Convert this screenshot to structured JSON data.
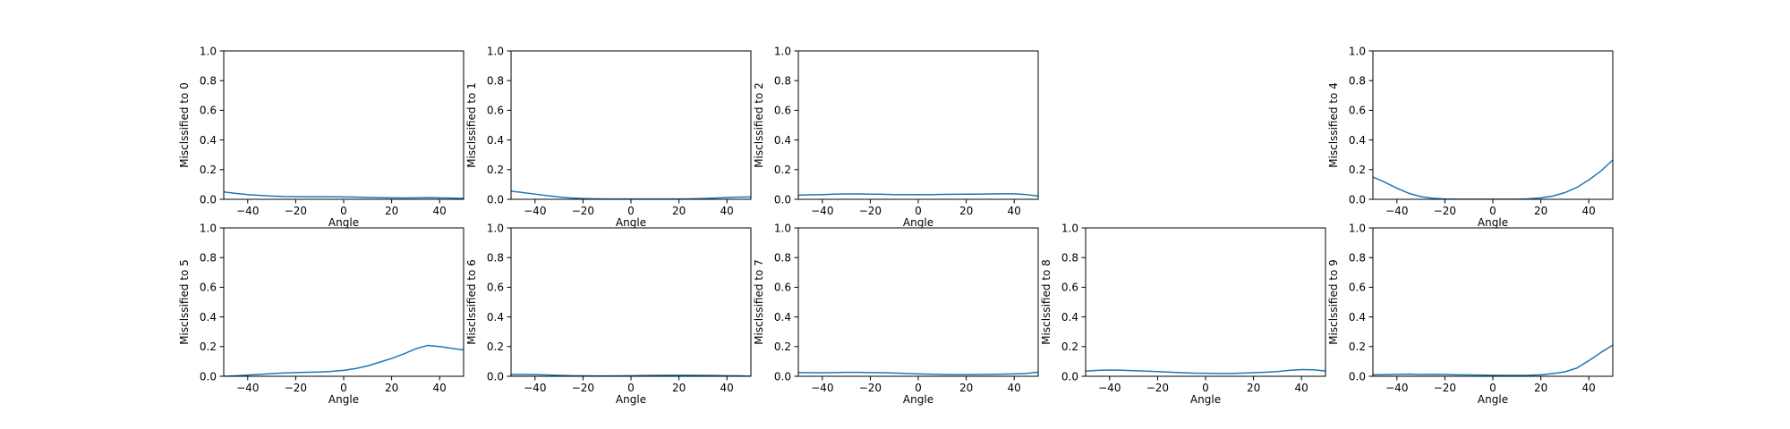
{
  "chart_data": [
    {
      "type": "line",
      "xlabel": "Angle",
      "ylabel": "Misclssified to 0",
      "xlim": [
        -50,
        50
      ],
      "ylim": [
        0,
        1
      ],
      "xticks": [
        -40,
        -20,
        0,
        20,
        40
      ],
      "yticks": [
        0.0,
        0.2,
        0.4,
        0.6,
        0.8,
        1.0
      ],
      "x": [
        -50,
        -45,
        -40,
        -35,
        -30,
        -25,
        -20,
        -15,
        -10,
        -5,
        0,
        5,
        10,
        15,
        20,
        25,
        30,
        35,
        40,
        45,
        50
      ],
      "y": [
        0.05,
        0.04,
        0.032,
        0.026,
        0.022,
        0.019,
        0.018,
        0.017,
        0.017,
        0.017,
        0.016,
        0.015,
        0.013,
        0.011,
        0.01,
        0.009,
        0.01,
        0.011,
        0.01,
        0.008,
        0.006
      ]
    },
    {
      "type": "line",
      "xlabel": "Angle",
      "ylabel": "Misclssified to 1",
      "xlim": [
        -50,
        50
      ],
      "ylim": [
        0,
        1
      ],
      "xticks": [
        -40,
        -20,
        0,
        20,
        40
      ],
      "yticks": [
        0.0,
        0.2,
        0.4,
        0.6,
        0.8,
        1.0
      ],
      "x": [
        -50,
        -45,
        -40,
        -35,
        -30,
        -25,
        -20,
        -15,
        -10,
        -5,
        0,
        5,
        10,
        15,
        20,
        25,
        30,
        35,
        40,
        45,
        50
      ],
      "y": [
        0.055,
        0.045,
        0.035,
        0.025,
        0.016,
        0.009,
        0.005,
        0.003,
        0.002,
        0.002,
        0.002,
        0.002,
        0.002,
        0.002,
        0.002,
        0.003,
        0.005,
        0.008,
        0.012,
        0.015,
        0.016
      ]
    },
    {
      "type": "line",
      "xlabel": "Angle",
      "ylabel": "Misclssified to 2",
      "xlim": [
        -50,
        50
      ],
      "ylim": [
        0,
        1
      ],
      "xticks": [
        -40,
        -20,
        0,
        20,
        40
      ],
      "yticks": [
        0.0,
        0.2,
        0.4,
        0.6,
        0.8,
        1.0
      ],
      "x": [
        -50,
        -45,
        -40,
        -35,
        -30,
        -25,
        -20,
        -15,
        -10,
        -5,
        0,
        5,
        10,
        15,
        20,
        25,
        30,
        35,
        40,
        45,
        50
      ],
      "y": [
        0.028,
        0.03,
        0.032,
        0.035,
        0.036,
        0.036,
        0.035,
        0.034,
        0.032,
        0.032,
        0.032,
        0.032,
        0.033,
        0.034,
        0.035,
        0.035,
        0.036,
        0.037,
        0.037,
        0.032,
        0.022
      ]
    },
    null,
    {
      "type": "line",
      "xlabel": "Angle",
      "ylabel": "Misclssified to 4",
      "xlim": [
        -50,
        50
      ],
      "ylim": [
        0,
        1
      ],
      "xticks": [
        -40,
        -20,
        0,
        20,
        40
      ],
      "yticks": [
        0.0,
        0.2,
        0.4,
        0.6,
        0.8,
        1.0
      ],
      "x": [
        -50,
        -45,
        -40,
        -35,
        -30,
        -25,
        -20,
        -15,
        -10,
        -5,
        0,
        5,
        10,
        15,
        20,
        25,
        30,
        35,
        40,
        45,
        50
      ],
      "y": [
        0.15,
        0.115,
        0.075,
        0.04,
        0.018,
        0.007,
        0.002,
        0.001,
        0.001,
        0.001,
        0.001,
        0.001,
        0.001,
        0.003,
        0.01,
        0.022,
        0.045,
        0.08,
        0.13,
        0.19,
        0.265
      ]
    },
    {
      "type": "line",
      "xlabel": "Angle",
      "ylabel": "Misclssified to 5",
      "xlim": [
        -50,
        50
      ],
      "ylim": [
        0,
        1
      ],
      "xticks": [
        -40,
        -20,
        0,
        20,
        40
      ],
      "yticks": [
        0.0,
        0.2,
        0.4,
        0.6,
        0.8,
        1.0
      ],
      "x": [
        -50,
        -45,
        -40,
        -35,
        -30,
        -25,
        -20,
        -15,
        -10,
        -5,
        0,
        5,
        10,
        15,
        20,
        25,
        30,
        35,
        40,
        45,
        50
      ],
      "y": [
        0.0,
        0.003,
        0.008,
        0.013,
        0.018,
        0.022,
        0.025,
        0.027,
        0.029,
        0.033,
        0.04,
        0.052,
        0.07,
        0.095,
        0.12,
        0.15,
        0.185,
        0.208,
        0.2,
        0.188,
        0.178
      ]
    },
    {
      "type": "line",
      "xlabel": "Angle",
      "ylabel": "Misclssified to 6",
      "xlim": [
        -50,
        50
      ],
      "ylim": [
        0,
        1
      ],
      "xticks": [
        -40,
        -20,
        0,
        20,
        40
      ],
      "yticks": [
        0.0,
        0.2,
        0.4,
        0.6,
        0.8,
        1.0
      ],
      "x": [
        -50,
        -45,
        -40,
        -35,
        -30,
        -25,
        -20,
        -15,
        -10,
        -5,
        0,
        5,
        10,
        15,
        20,
        25,
        30,
        35,
        40,
        45,
        50
      ],
      "y": [
        0.012,
        0.012,
        0.011,
        0.009,
        0.006,
        0.004,
        0.003,
        0.002,
        0.002,
        0.003,
        0.004,
        0.005,
        0.006,
        0.007,
        0.007,
        0.007,
        0.006,
        0.005,
        0.004,
        0.003,
        0.001
      ]
    },
    {
      "type": "line",
      "xlabel": "Angle",
      "ylabel": "Misclssified to 7",
      "xlim": [
        -50,
        50
      ],
      "ylim": [
        0,
        1
      ],
      "xticks": [
        -40,
        -20,
        0,
        20,
        40
      ],
      "yticks": [
        0.0,
        0.2,
        0.4,
        0.6,
        0.8,
        1.0
      ],
      "x": [
        -50,
        -45,
        -40,
        -35,
        -30,
        -25,
        -20,
        -15,
        -10,
        -5,
        0,
        5,
        10,
        15,
        20,
        25,
        30,
        35,
        40,
        45,
        50
      ],
      "y": [
        0.025,
        0.024,
        0.023,
        0.025,
        0.026,
        0.026,
        0.025,
        0.024,
        0.022,
        0.019,
        0.016,
        0.014,
        0.012,
        0.011,
        0.011,
        0.012,
        0.013,
        0.014,
        0.016,
        0.019,
        0.028
      ]
    },
    {
      "type": "line",
      "xlabel": "Angle",
      "ylabel": "Misclssified to 8",
      "xlim": [
        -50,
        50
      ],
      "ylim": [
        0,
        1
      ],
      "xticks": [
        -40,
        -20,
        0,
        20,
        40
      ],
      "yticks": [
        0.0,
        0.2,
        0.4,
        0.6,
        0.8,
        1.0
      ],
      "x": [
        -50,
        -45,
        -40,
        -35,
        -30,
        -25,
        -20,
        -15,
        -10,
        -5,
        0,
        5,
        10,
        15,
        20,
        25,
        30,
        35,
        40,
        45,
        50
      ],
      "y": [
        0.035,
        0.04,
        0.042,
        0.041,
        0.038,
        0.035,
        0.032,
        0.028,
        0.024,
        0.021,
        0.02,
        0.019,
        0.019,
        0.021,
        0.024,
        0.027,
        0.032,
        0.04,
        0.045,
        0.044,
        0.035
      ]
    },
    {
      "type": "line",
      "xlabel": "Angle",
      "ylabel": "Misclssified to 9",
      "xlim": [
        -50,
        50
      ],
      "ylim": [
        0,
        1
      ],
      "xticks": [
        -40,
        -20,
        0,
        20,
        40
      ],
      "yticks": [
        0.0,
        0.2,
        0.4,
        0.6,
        0.8,
        1.0
      ],
      "x": [
        -50,
        -45,
        -40,
        -35,
        -30,
        -25,
        -20,
        -15,
        -10,
        -5,
        0,
        5,
        10,
        15,
        20,
        25,
        30,
        35,
        40,
        45,
        50
      ],
      "y": [
        0.01,
        0.011,
        0.013,
        0.014,
        0.012,
        0.013,
        0.012,
        0.01,
        0.009,
        0.008,
        0.007,
        0.006,
        0.006,
        0.007,
        0.01,
        0.018,
        0.03,
        0.055,
        0.105,
        0.16,
        0.21
      ]
    }
  ],
  "colors": {
    "line": "#1f77b4",
    "axes": "#000000",
    "background": "#ffffff"
  }
}
